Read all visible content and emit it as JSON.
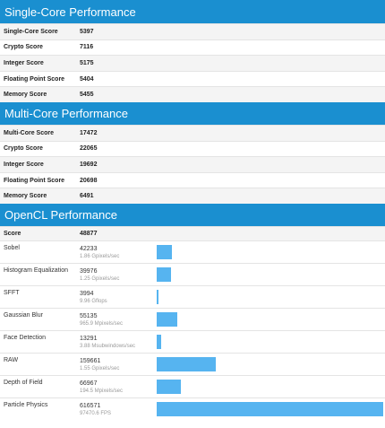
{
  "single_core": {
    "title": "Single-Core Performance",
    "rows": [
      {
        "label": "Single-Core Score",
        "value": "5397"
      },
      {
        "label": "Crypto Score",
        "value": "7116"
      },
      {
        "label": "Integer Score",
        "value": "5175"
      },
      {
        "label": "Floating Point Score",
        "value": "5404"
      },
      {
        "label": "Memory Score",
        "value": "5455"
      }
    ]
  },
  "multi_core": {
    "title": "Multi-Core Performance",
    "rows": [
      {
        "label": "Multi-Core Score",
        "value": "17472"
      },
      {
        "label": "Crypto Score",
        "value": "22065"
      },
      {
        "label": "Integer Score",
        "value": "19692"
      },
      {
        "label": "Floating Point Score",
        "value": "20698"
      },
      {
        "label": "Memory Score",
        "value": "6491"
      }
    ]
  },
  "opencl": {
    "title": "OpenCL Performance",
    "score_label": "Score",
    "score_value": "48877",
    "workloads": [
      {
        "label": "Sobel",
        "score": "42233",
        "rate": "1.86 Gpixels/sec",
        "bar_fraction": 0.0685
      },
      {
        "label": "Histogram Equalization",
        "score": "39976",
        "rate": "1.25 Gpixels/sec",
        "bar_fraction": 0.0648
      },
      {
        "label": "SFFT",
        "score": "3994",
        "rate": "9.96 Gflops",
        "bar_fraction": 0.0065
      },
      {
        "label": "Gaussian Blur",
        "score": "55135",
        "rate": "965.9 Mpixels/sec",
        "bar_fraction": 0.0894
      },
      {
        "label": "Face Detection",
        "score": "13291",
        "rate": "3.88 Msubwindows/sec",
        "bar_fraction": 0.0216
      },
      {
        "label": "RAW",
        "score": "159661",
        "rate": "1.55 Gpixels/sec",
        "bar_fraction": 0.259
      },
      {
        "label": "Depth of Field",
        "score": "66967",
        "rate": "194.5 Mpixels/sec",
        "bar_fraction": 0.1086
      },
      {
        "label": "Particle Physics",
        "score": "616571",
        "rate": "97470.6 FPS",
        "bar_fraction": 1.0
      }
    ]
  },
  "colors": {
    "header": "#1a8fd0",
    "bar": "#56b4f0"
  }
}
